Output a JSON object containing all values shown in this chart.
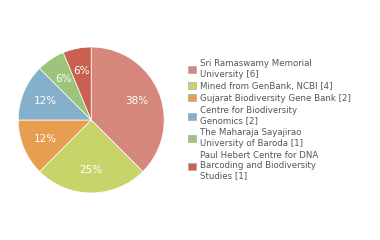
{
  "labels": [
    "Sri Ramaswamy Memorial\nUniversity [6]",
    "Mined from GenBank, NCBI [4]",
    "Gujarat Biodiversity Gene Bank [2]",
    "Centre for Biodiversity\nGenomics [2]",
    "The Maharaja Sayajirao\nUniversity of Baroda [1]",
    "Paul Hebert Centre for DNA\nBarcoding and Biodiversity\nStudies [1]"
  ],
  "values": [
    6,
    4,
    2,
    2,
    1,
    1
  ],
  "colors": [
    "#d4877a",
    "#c8d46a",
    "#e89e50",
    "#85b0cc",
    "#9cc47a",
    "#c96050"
  ],
  "startangle": 90,
  "text_color": "#555555",
  "pct_fontsize": 7.5,
  "legend_fontsize": 6.2,
  "pct_color": "white"
}
